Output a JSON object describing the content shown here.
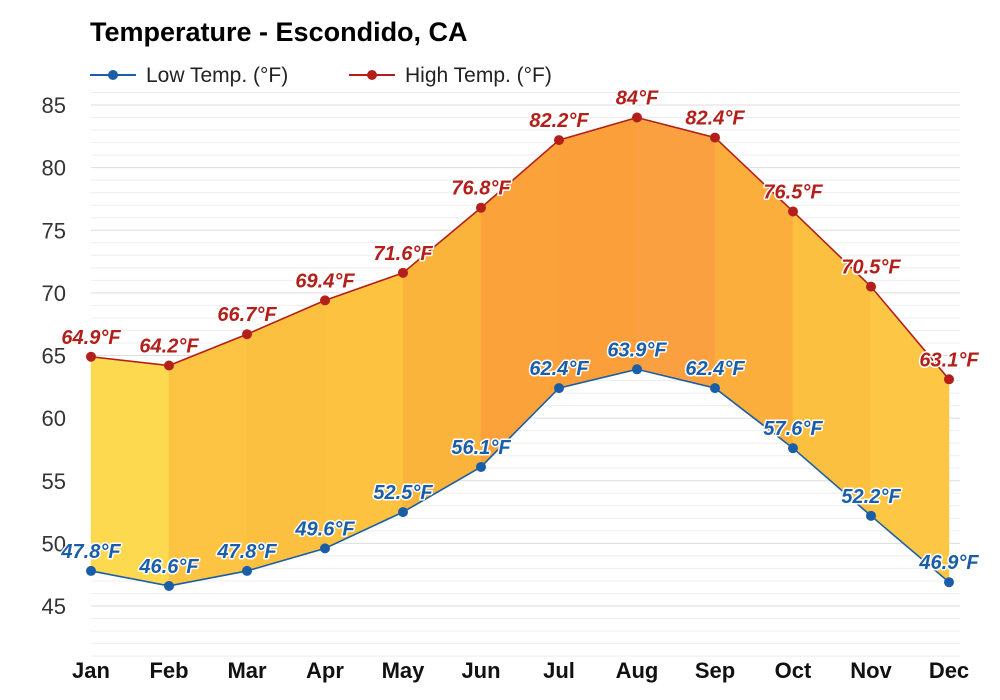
{
  "chart_data": {
    "type": "area",
    "title": "Temperature - Escondido, CA",
    "categories": [
      "Jan",
      "Feb",
      "Mar",
      "Apr",
      "May",
      "Jun",
      "Jul",
      "Aug",
      "Sep",
      "Oct",
      "Nov",
      "Dec"
    ],
    "series": [
      {
        "name": "Low Temp. (°F)",
        "color": "#1a5ea8",
        "values": [
          47.8,
          46.6,
          47.8,
          49.6,
          52.5,
          56.1,
          62.4,
          63.9,
          62.4,
          57.6,
          52.2,
          46.9
        ],
        "labels": [
          "47.8°F",
          "46.6°F",
          "47.8°F",
          "49.6°F",
          "52.5°F",
          "56.1°F",
          "62.4°F",
          "63.9°F",
          "62.4°F",
          "57.6°F",
          "52.2°F",
          "46.9°F"
        ]
      },
      {
        "name": "High Temp. (°F)",
        "color": "#b3201b",
        "values": [
          64.9,
          64.2,
          66.7,
          69.4,
          71.6,
          76.8,
          82.2,
          84,
          82.4,
          76.5,
          70.5,
          63.1
        ],
        "labels": [
          "64.9°F",
          "64.2°F",
          "66.7°F",
          "69.4°F",
          "71.6°F",
          "76.8°F",
          "82.2°F",
          "84°F",
          "82.4°F",
          "76.5°F",
          "70.5°F",
          "63.1°F"
        ]
      }
    ],
    "ylim": [
      41,
      86
    ],
    "yticks": [
      "45",
      "50",
      "55",
      "60",
      "65",
      "70",
      "75",
      "80",
      "85"
    ],
    "grid": true,
    "legend_position": "top-left",
    "fill_colors": [
      "#fdd94f",
      "#fdc443",
      "#fcc040",
      "#fdc23f",
      "#fbb43b",
      "#fba23a",
      "#fb9f3a",
      "#fba040",
      "#fbae3c",
      "#fcc040",
      "#fdc745",
      "#fddc5a"
    ]
  }
}
